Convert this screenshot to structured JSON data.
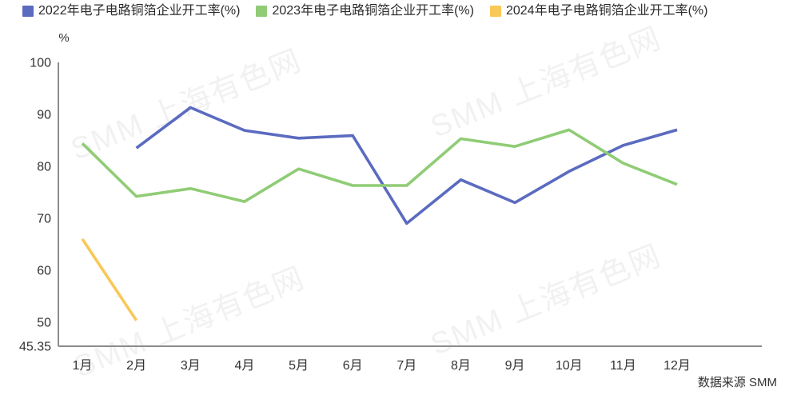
{
  "watermark": {
    "text": "SMM 上海有色网"
  },
  "source": {
    "text": "数据来源 SMM"
  },
  "chart_data": {
    "type": "line",
    "title": "",
    "unit_label": "%",
    "x": [
      "1月",
      "2月",
      "3月",
      "4月",
      "5月",
      "6月",
      "7月",
      "8月",
      "9月",
      "10月",
      "11月",
      "12月"
    ],
    "series": [
      {
        "name": "2022年电子电路铜箔企业开工率(%)",
        "color": "#5b6bc0",
        "values": [
          null,
          83.5,
          91.3,
          86.9,
          85.4,
          85.9,
          69.0,
          77.4,
          73.0,
          79.0,
          84.0,
          87.0
        ]
      },
      {
        "name": "2023年电子电路铜箔企业开工率(%)",
        "color": "#90cc75",
        "values": [
          84.4,
          74.2,
          75.7,
          73.2,
          79.5,
          76.3,
          76.3,
          85.3,
          83.8,
          87.0,
          80.6,
          76.5
        ]
      },
      {
        "name": "2024年电子电路铜箔企业开工率(%)",
        "color": "#f9c858",
        "values": [
          66.0,
          50.3,
          null,
          null,
          null,
          null,
          null,
          null,
          null,
          null,
          null,
          null
        ]
      }
    ],
    "ylim": [
      45.35,
      100
    ],
    "yticks": [
      100,
      90,
      80,
      70,
      60,
      50,
      45.35
    ],
    "ytick_labels": [
      "100",
      "90",
      "80",
      "70",
      "60",
      "50",
      "45.35"
    ],
    "legend_position": "top-left",
    "grid": false,
    "axis_color": "#8c8c8c",
    "label_color": "#333333"
  }
}
